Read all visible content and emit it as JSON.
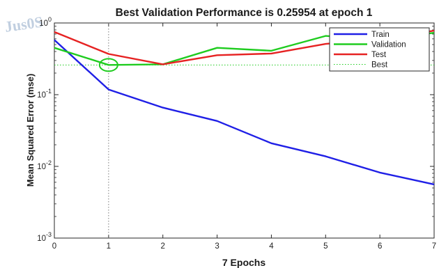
{
  "chart_data": {
    "type": "line",
    "title": "Best Validation Performance is 0.25954 at epoch 1",
    "xlabel": "7 Epochs",
    "ylabel": "Mean Squared Error  (mse)",
    "yscale": "log",
    "xlim": [
      0,
      7
    ],
    "ylim": [
      0.001,
      1
    ],
    "x_ticks": [
      "0",
      "1",
      "2",
      "3",
      "4",
      "5",
      "6",
      "7"
    ],
    "x": [
      0,
      1,
      2,
      3,
      4,
      5,
      6,
      7
    ],
    "series": [
      {
        "name": "Train",
        "color": "#1f1fe6",
        "values": [
          0.58,
          0.118,
          0.066,
          0.043,
          0.021,
          0.0138,
          0.0082,
          0.0056
        ]
      },
      {
        "name": "Validation",
        "color": "#1fcc1f",
        "values": [
          0.45,
          0.26,
          0.265,
          0.45,
          0.41,
          0.66,
          0.58,
          0.73
        ]
      },
      {
        "name": "Test",
        "color": "#e62222",
        "values": [
          0.75,
          0.37,
          0.265,
          0.355,
          0.375,
          0.51,
          0.6,
          0.78
        ]
      }
    ],
    "best": {
      "name": "Best",
      "color": "#1fcc1f",
      "epoch": 1,
      "value": 0.25954,
      "marker": "circle"
    },
    "legend": {
      "position": "top-right"
    },
    "grid": false
  },
  "watermark_text": "Jus0S"
}
